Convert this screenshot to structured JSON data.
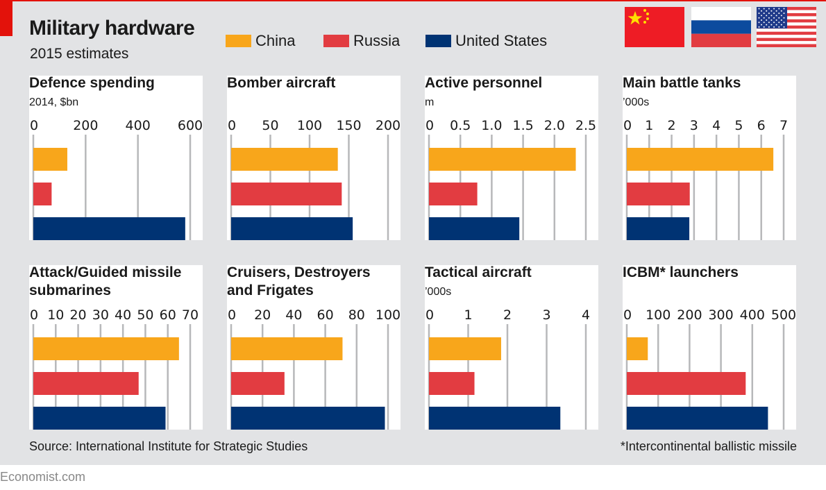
{
  "header": {
    "title": "Military hardware",
    "subtitle": "2015 estimates"
  },
  "legend": [
    {
      "label": "China",
      "color": "#f8a61b"
    },
    {
      "label": "Russia",
      "color": "#e23c41"
    },
    {
      "label": "United States",
      "color": "#003373"
    }
  ],
  "flags": [
    "china-flag",
    "russia-flag",
    "usa-flag"
  ],
  "footer": {
    "source": "Source: International Institute for Strategic Studies",
    "footnote": "*Intercontinental ballistic missile",
    "brand": "Economist.com"
  },
  "chart_data": [
    {
      "type": "bar",
      "title": "Defence spending",
      "unit": "2014, $bn",
      "categories": [
        "China",
        "Russia",
        "United States"
      ],
      "values": [
        130,
        70,
        581
      ],
      "ticks": [
        "0",
        "200",
        "400",
        "600"
      ],
      "xlim": [
        0,
        600
      ]
    },
    {
      "type": "bar",
      "title": "Bomber aircraft",
      "unit": "",
      "categories": [
        "China",
        "Russia",
        "United States"
      ],
      "values": [
        136,
        141,
        155
      ],
      "ticks": [
        "0",
        "50",
        "100",
        "150",
        "200"
      ],
      "xlim": [
        0,
        200
      ]
    },
    {
      "type": "bar",
      "title": "Active personnel",
      "unit": "m",
      "categories": [
        "China",
        "Russia",
        "United States"
      ],
      "values": [
        2.34,
        0.77,
        1.44
      ],
      "ticks": [
        "0",
        "0.5",
        "1.0",
        "1.5",
        "2.0",
        "2.5"
      ],
      "xlim": [
        0,
        2.5
      ]
    },
    {
      "type": "bar",
      "title": "Main battle tanks",
      "unit": "’000s",
      "categories": [
        "China",
        "Russia",
        "United States"
      ],
      "values": [
        6.54,
        2.81,
        2.79
      ],
      "ticks": [
        "0",
        "1",
        "2",
        "3",
        "4",
        "5",
        "6",
        "7"
      ],
      "xlim": [
        0,
        7
      ]
    },
    {
      "type": "bar",
      "title": "Attack/Guided missile\nsubmarines",
      "unit": "",
      "categories": [
        "China",
        "Russia",
        "United States"
      ],
      "values": [
        65,
        47,
        59
      ],
      "ticks": [
        "0",
        "10",
        "20",
        "30",
        "40",
        "50",
        "60",
        "70"
      ],
      "xlim": [
        0,
        70
      ]
    },
    {
      "type": "bar",
      "title": "Cruisers, Destroyers\nand Frigates",
      "unit": "",
      "categories": [
        "China",
        "Russia",
        "United States"
      ],
      "values": [
        71,
        34,
        98
      ],
      "ticks": [
        "0",
        "20",
        "40",
        "60",
        "80",
        "100"
      ],
      "xlim": [
        0,
        100
      ]
    },
    {
      "type": "bar",
      "title": "Tactical aircraft",
      "unit": "’000s",
      "categories": [
        "China",
        "Russia",
        "United States"
      ],
      "values": [
        1.84,
        1.16,
        3.35
      ],
      "ticks": [
        "0",
        "1",
        "2",
        "3",
        "4"
      ],
      "xlim": [
        0,
        4
      ]
    },
    {
      "type": "bar",
      "title": "ICBM* launchers",
      "unit": "",
      "categories": [
        "China",
        "Russia",
        "United States"
      ],
      "values": [
        67,
        379,
        450
      ],
      "ticks": [
        "0",
        "100",
        "200",
        "300",
        "400",
        "500"
      ],
      "xlim": [
        0,
        500
      ]
    }
  ]
}
